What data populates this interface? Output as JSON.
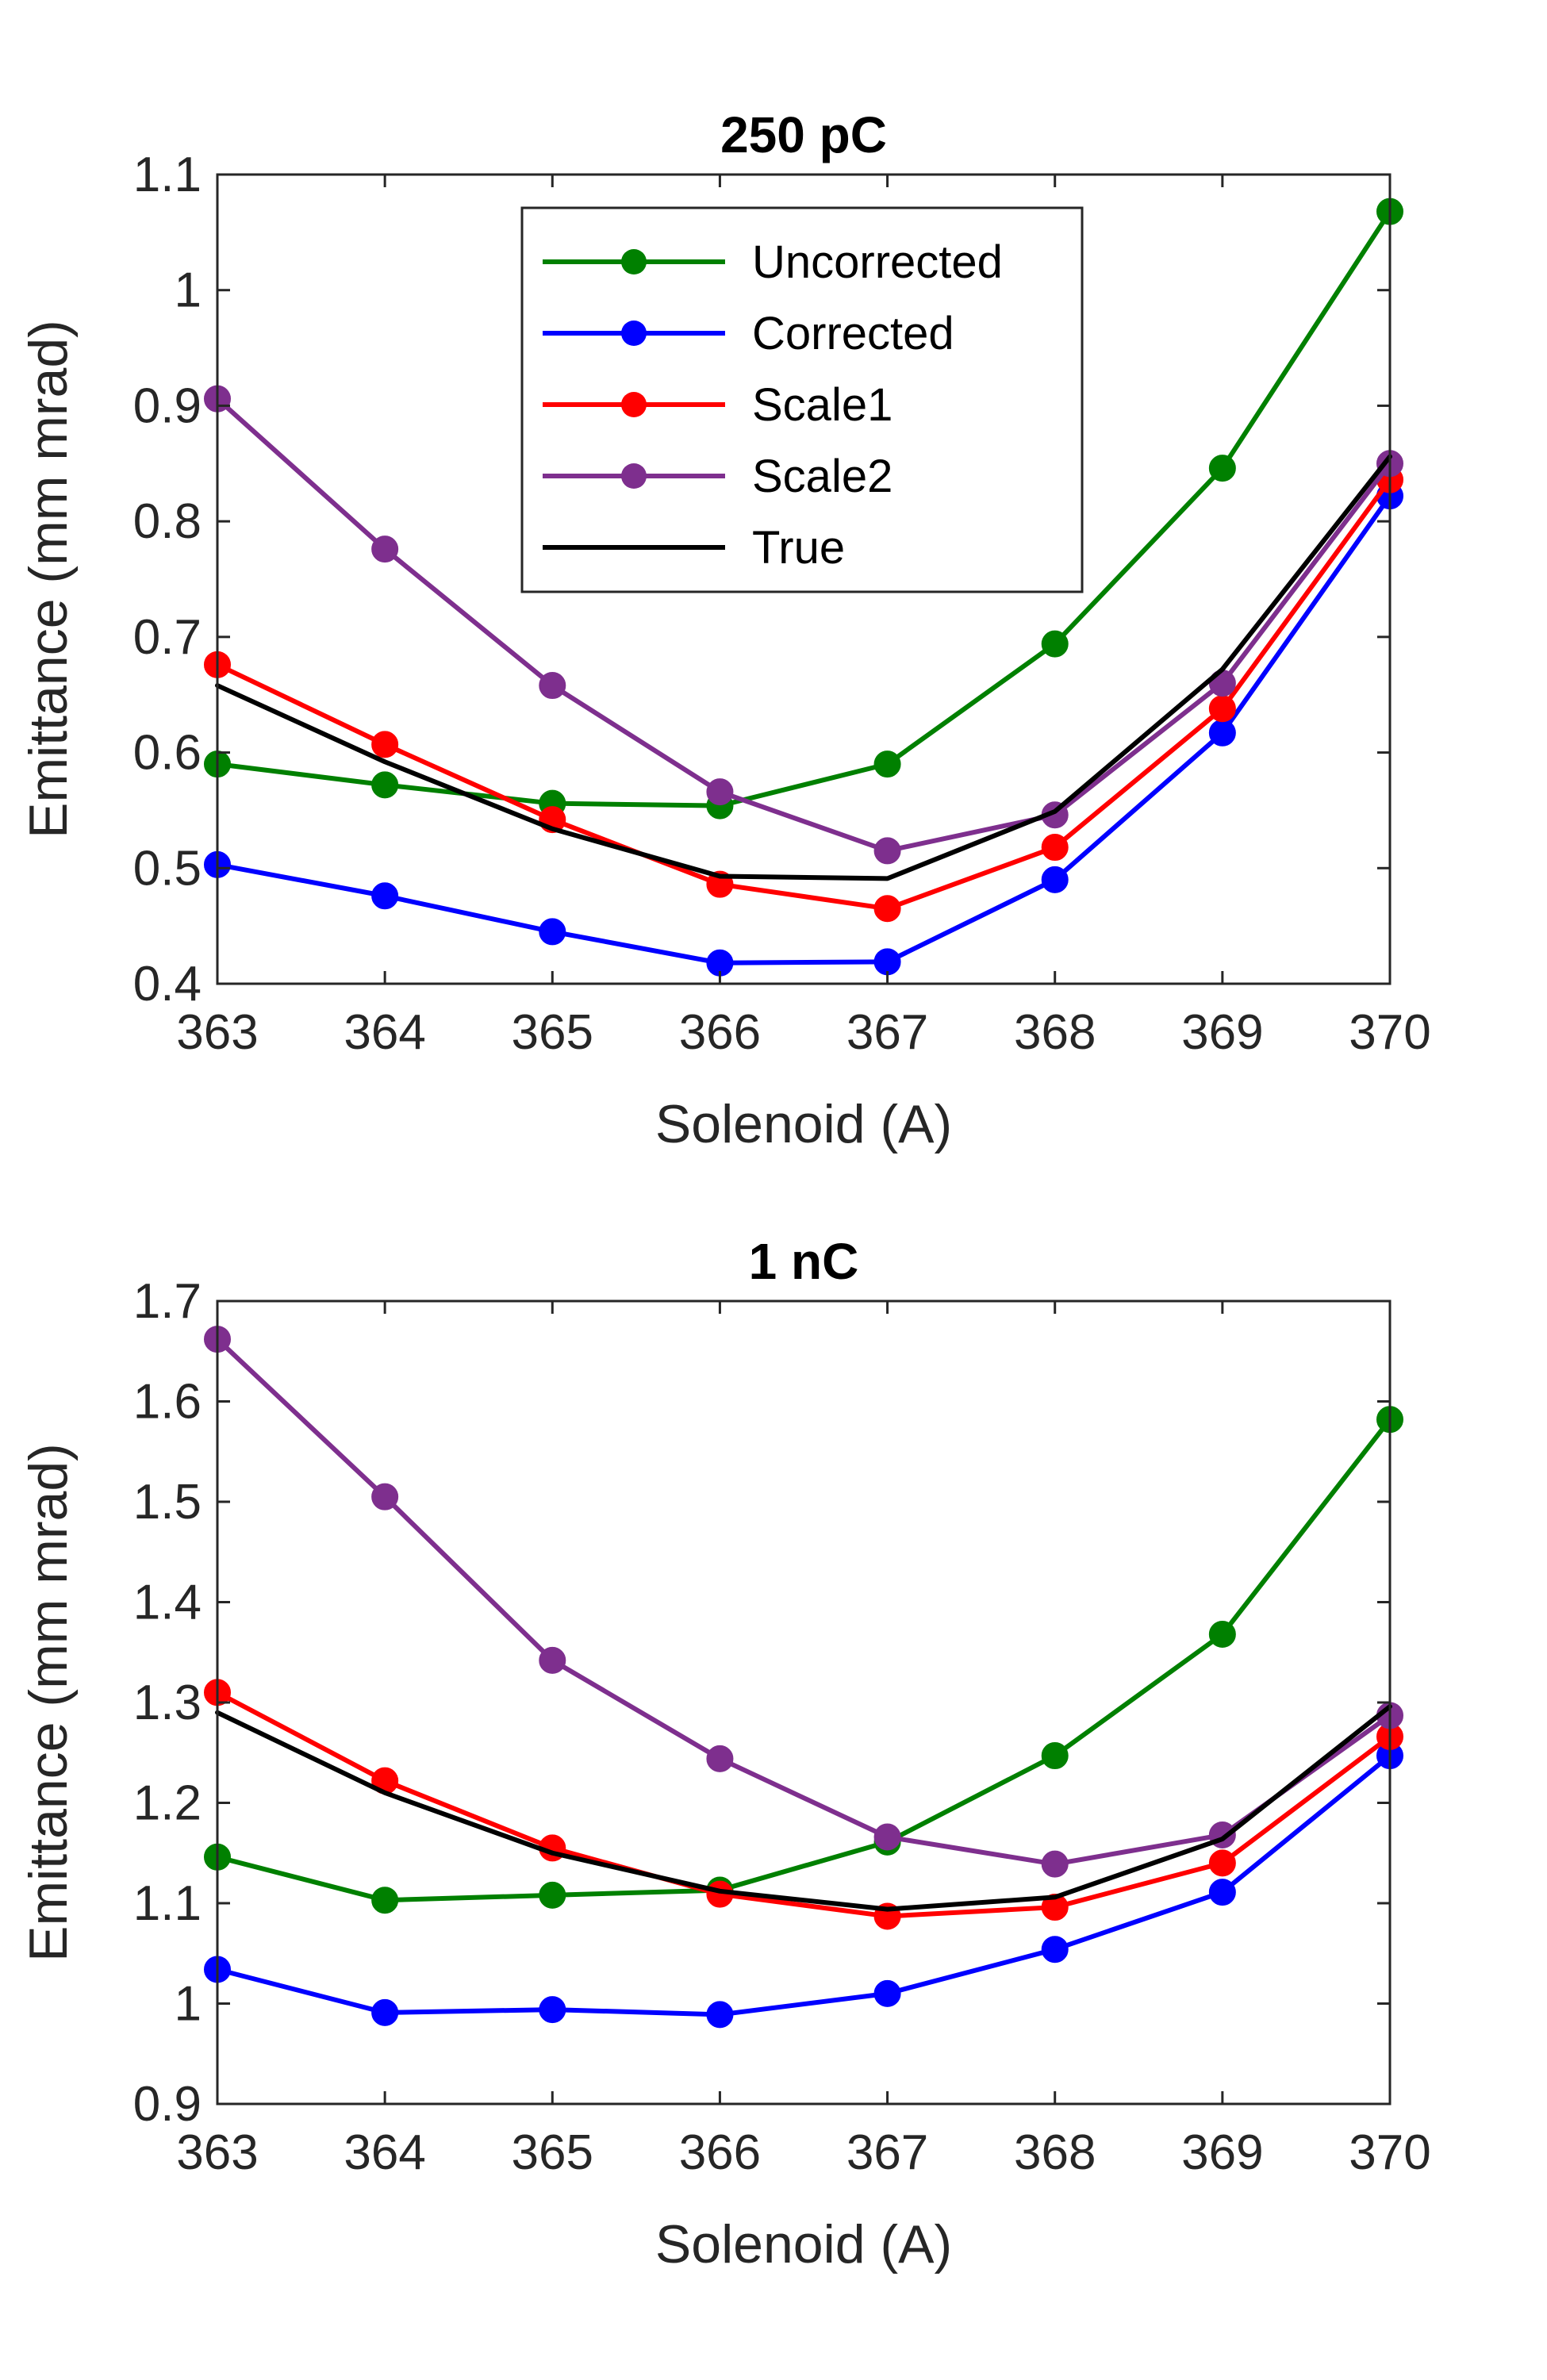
{
  "chart_data": [
    {
      "type": "line",
      "title": "250 pC",
      "xlabel": "Solenoid (A)",
      "ylabel": "Emittance (mm mrad)",
      "x": [
        363,
        364,
        365,
        366,
        367,
        368,
        369,
        370
      ],
      "xlim": [
        363,
        370
      ],
      "ylim": [
        0.4,
        1.1
      ],
      "yticks": [
        0.4,
        0.5,
        0.6,
        0.7,
        0.8,
        0.9,
        1,
        1.1
      ],
      "ytick_labels": [
        "0.4",
        "0.5",
        "0.6",
        "0.7",
        "0.8",
        "0.9",
        "1",
        "1.1"
      ],
      "xticks": [
        363,
        364,
        365,
        366,
        367,
        368,
        369,
        370
      ],
      "xtick_labels": [
        "363",
        "364",
        "365",
        "366",
        "367",
        "368",
        "369",
        "370"
      ],
      "legend": "top-center",
      "grid": false,
      "series": [
        {
          "name": "Uncorrected",
          "color": "#008000",
          "markers": true,
          "values": [
            0.59,
            0.572,
            0.556,
            0.554,
            0.59,
            0.694,
            0.846,
            1.068
          ]
        },
        {
          "name": "Corrected",
          "color": "#0000ff",
          "markers": true,
          "values": [
            0.503,
            0.476,
            0.445,
            0.418,
            0.419,
            0.49,
            0.617,
            0.822
          ]
        },
        {
          "name": "Scale1",
          "color": "#ff0000",
          "markers": true,
          "values": [
            0.676,
            0.607,
            0.542,
            0.486,
            0.465,
            0.518,
            0.638,
            0.836
          ]
        },
        {
          "name": "Scale2",
          "color": "#7e2f8e",
          "markers": true,
          "values": [
            0.906,
            0.776,
            0.658,
            0.566,
            0.515,
            0.546,
            0.66,
            0.85
          ]
        },
        {
          "name": "True",
          "color": "#000000",
          "markers": false,
          "values": [
            0.658,
            0.592,
            0.534,
            0.493,
            0.491,
            0.549,
            0.672,
            0.856
          ]
        }
      ]
    },
    {
      "type": "line",
      "title": "1 nC",
      "xlabel": "Solenoid (A)",
      "ylabel": "Emittance (mm mrad)",
      "x": [
        363,
        364,
        365,
        366,
        367,
        368,
        369,
        370
      ],
      "xlim": [
        363,
        370
      ],
      "ylim": [
        0.9,
        1.7
      ],
      "yticks": [
        0.9,
        1,
        1.1,
        1.2,
        1.3,
        1.4,
        1.5,
        1.6,
        1.7
      ],
      "ytick_labels": [
        "0.9",
        "1",
        "1.1",
        "1.2",
        "1.3",
        "1.4",
        "1.5",
        "1.6",
        "1.7"
      ],
      "xticks": [
        363,
        364,
        365,
        366,
        367,
        368,
        369,
        370
      ],
      "xtick_labels": [
        "363",
        "364",
        "365",
        "366",
        "367",
        "368",
        "369",
        "370"
      ],
      "grid": false,
      "series": [
        {
          "name": "Uncorrected",
          "color": "#008000",
          "markers": true,
          "values": [
            1.146,
            1.103,
            1.108,
            1.113,
            1.161,
            1.247,
            1.368,
            1.582
          ]
        },
        {
          "name": "Corrected",
          "color": "#0000ff",
          "markers": true,
          "values": [
            1.034,
            0.991,
            0.994,
            0.989,
            1.01,
            1.054,
            1.111,
            1.247
          ]
        },
        {
          "name": "Scale1",
          "color": "#ff0000",
          "markers": true,
          "values": [
            1.31,
            1.222,
            1.155,
            1.109,
            1.087,
            1.096,
            1.14,
            1.266
          ]
        },
        {
          "name": "Scale2",
          "color": "#7e2f8e",
          "markers": true,
          "values": [
            1.662,
            1.505,
            1.342,
            1.244,
            1.166,
            1.139,
            1.168,
            1.287
          ]
        },
        {
          "name": "True",
          "color": "#000000",
          "markers": false,
          "values": [
            1.29,
            1.21,
            1.15,
            1.112,
            1.094,
            1.106,
            1.164,
            1.296
          ]
        }
      ]
    }
  ]
}
